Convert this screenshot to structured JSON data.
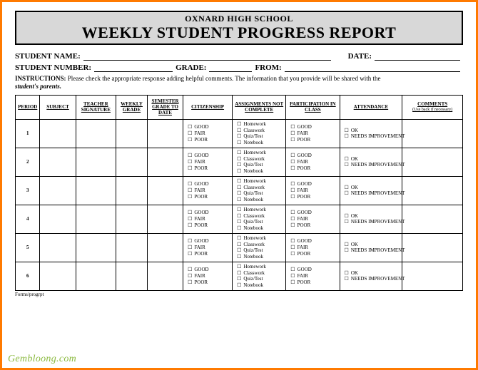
{
  "header": {
    "school": "OXNARD HIGH SCHOOL",
    "title": "WEEKLY STUDENT PROGRESS REPORT"
  },
  "fields": {
    "student_name_label": "STUDENT NAME:",
    "date_label": "DATE:",
    "student_number_label": "STUDENT NUMBER:",
    "grade_label": "GRADE:",
    "from_label": "FROM:"
  },
  "instructions": {
    "label": "INSTRUCTIONS:",
    "text": "Please check the appropriate response adding helpful comments.  The information that you provide will be shared with the",
    "emph": "student's parents."
  },
  "columns": {
    "period": "PERIOD",
    "subject": "SUBJECT",
    "teacher": "TEACHER SIGNATURE",
    "weekly_grade": "WEEKLY GRADE",
    "semester_grade": "SEMESTER GRADE TO DATE",
    "citizenship": "CITIZENSHIP",
    "assignments": "ASSIGNMENTS NOT COMPLETE",
    "participation": "PARTICIPATION IN CLASS",
    "attendance": "ATTENDANCE",
    "comments": "COMMENTS",
    "comments_sub": "(Use back if necessary)"
  },
  "option_sets": {
    "gfp": [
      "GOOD",
      "FAIR",
      "POOR"
    ],
    "assign": [
      "Homework",
      "Classwork",
      "Quiz/Test",
      "Notebook"
    ],
    "attend": [
      "OK",
      "NEEDS IMPROVEMENT"
    ]
  },
  "periods": [
    "1",
    "2",
    "3",
    "4",
    "5",
    "6"
  ],
  "footnote": "Forms/progrpt",
  "watermark": "Gembloong.com",
  "colors": {
    "frame": "#ff7a00",
    "header_bg": "#d8d8d8",
    "watermark": "#8ab93e"
  }
}
